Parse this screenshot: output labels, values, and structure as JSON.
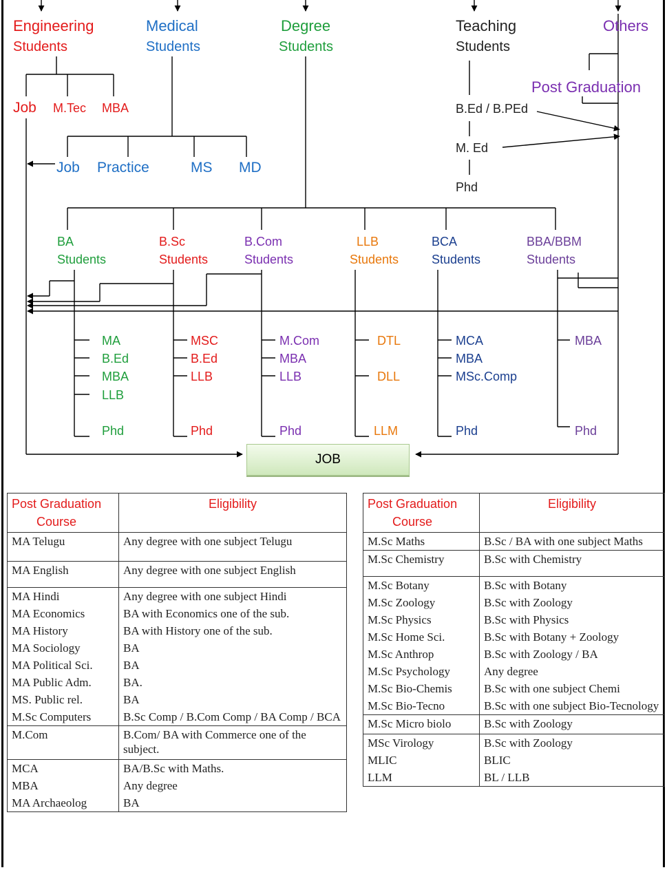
{
  "colors": {
    "engineering": "#e31b1b",
    "medical": "#1f6fc5",
    "degree": "#1f9e3c",
    "teaching": "#222222",
    "others": "#7a2fb0",
    "orange": "#e8780c",
    "header_red": "#e31b1b"
  },
  "tree": {
    "engineering": {
      "line1": "Engineering",
      "line2": "Students",
      "children": [
        "Job",
        "M.Tec",
        "MBA"
      ]
    },
    "medical": {
      "line1": "Medical",
      "line2": "Students",
      "children": [
        "Job",
        "Practice",
        "MS",
        "MD"
      ]
    },
    "degree": {
      "line1": "Degree",
      "line2": "Students"
    },
    "teaching": {
      "line1": "Teaching",
      "line2": "Students",
      "chain": [
        "B.Ed / B.PEd",
        "M. Ed",
        "Phd"
      ]
    },
    "others": {
      "label": "Others",
      "post_graduation": "Post Graduation"
    },
    "branches": [
      {
        "line1": "BA",
        "line2": "Students",
        "courses": [
          "MA",
          "B.Ed",
          "MBA",
          "LLB"
        ],
        "last": "Phd"
      },
      {
        "line1": "B.Sc",
        "line2": "Students",
        "courses": [
          "MSC",
          "B.Ed",
          "LLB"
        ],
        "last": "Phd"
      },
      {
        "line1": "B.Com",
        "line2": "Students",
        "courses": [
          "M.Com",
          "MBA",
          "LLB"
        ],
        "last": "Phd"
      },
      {
        "line1": "LLB",
        "line2": "Students",
        "courses": [
          "DTL",
          "DLL"
        ],
        "last": "LLM"
      },
      {
        "line1": "BCA",
        "line2": "Students",
        "courses": [
          "MCA",
          "MBA",
          "MSc.Comp"
        ],
        "last": "Phd"
      },
      {
        "line1": "BBA/BBM",
        "line2": "Students",
        "courses": [
          "MBA"
        ],
        "last": "Phd"
      }
    ],
    "job": "JOB"
  },
  "tables": {
    "header": {
      "course_line1": "Post Graduation",
      "course_line2": "Course",
      "eligibility": "Eligibility"
    },
    "left": [
      [
        {
          "course": "MA  Telugu",
          "eligibility": "Any degree with one subject Telugu"
        }
      ],
      [
        {
          "course": "MA  English",
          "eligibility": "Any degree with one subject English"
        }
      ],
      [
        {
          "course": "MA  Hindi",
          "eligibility": "Any degree with one subject Hindi"
        },
        {
          "course": "MA Economics",
          "eligibility": "BA with Economics one of the sub."
        },
        {
          "course": "MA History",
          "eligibility": "BA with History one of the sub."
        },
        {
          "course": "MA Sociology",
          "eligibility": "BA"
        },
        {
          "course": "MA Political Sci.",
          "eligibility": "BA"
        },
        {
          "course": "MA Public Adm.",
          "eligibility": "BA."
        },
        {
          "course": "MS. Public rel.",
          "eligibility": "BA"
        },
        {
          "course": "M.Sc Computers",
          "eligibility": "B.Sc Comp / B.Com Comp /  BA Comp / BCA"
        }
      ],
      [
        {
          "course": "M.Com",
          "eligibility": "B.Com/ BA with Commerce one of the subject."
        }
      ],
      [
        {
          "course": "MCA",
          "eligibility": "BA/B.Sc with Maths."
        },
        {
          "course": "MBA",
          "eligibility": "Any degree"
        },
        {
          "course": "MA Archaeolog",
          "eligibility": "BA"
        }
      ]
    ],
    "right": [
      [
        {
          "course": "M.Sc Maths",
          "eligibility": "B.Sc / BA with one subject Maths"
        }
      ],
      [
        {
          "course": "M.Sc Chemistry",
          "eligibility": "B.Sc with Chemistry"
        }
      ],
      [
        {
          "course": "M.Sc Botany",
          "eligibility": "B.Sc with Botany"
        },
        {
          "course": "M.Sc Zoology",
          "eligibility": "B.Sc with Zoology"
        },
        {
          "course": "M.Sc  Physics",
          "eligibility": "B.Sc with Physics"
        },
        {
          "course": "M.Sc Home Sci.",
          "eligibility": "B.Sc with Botany + Zoology"
        },
        {
          "course": "M.Sc Anthrop",
          "eligibility": "B.Sc with Zoology / BA"
        },
        {
          "course": "M.Sc Psychology",
          "eligibility": "Any degree"
        },
        {
          "course": "M.Sc Bio-Chemis",
          "eligibility": "B.Sc with one subject Chemi"
        },
        {
          "course": "M.Sc Bio-Tecno",
          "eligibility": "B.Sc with one subject Bio-Tecnology"
        }
      ],
      [
        {
          "course": "M.Sc Micro biolo",
          "eligibility": "B.Sc with Zoology"
        }
      ],
      [
        {
          "course": "MSc Virology",
          "eligibility": "B.Sc with Zoology"
        },
        {
          "course": "MLIC",
          "eligibility": "BLIC"
        },
        {
          "course": "LLM",
          "eligibility": "BL / LLB"
        }
      ]
    ]
  }
}
